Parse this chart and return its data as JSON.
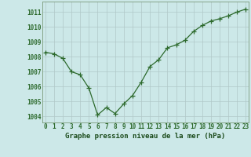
{
  "x": [
    0,
    1,
    2,
    3,
    4,
    5,
    6,
    7,
    8,
    9,
    10,
    11,
    12,
    13,
    14,
    15,
    16,
    17,
    18,
    19,
    20,
    21,
    22,
    23
  ],
  "y": [
    1008.3,
    1008.2,
    1007.9,
    1007.0,
    1006.8,
    1005.9,
    1004.1,
    1004.6,
    1004.2,
    1004.85,
    1005.4,
    1006.3,
    1007.35,
    1007.8,
    1008.6,
    1008.8,
    1009.1,
    1009.7,
    1010.1,
    1010.4,
    1010.55,
    1010.75,
    1011.0,
    1011.2
  ],
  "line_color": "#2d6a2d",
  "marker": "+",
  "marker_size": 4.0,
  "linewidth": 0.9,
  "bg_color": "#cce8e8",
  "grid_color": "#b0c8c8",
  "xlabel": "Graphe pression niveau de la mer (hPa)",
  "xlabel_color": "#1a4a1a",
  "xlabel_fontsize": 6.5,
  "tick_color": "#2d6a2d",
  "tick_fontsize": 5.5,
  "ytick_values": [
    1004,
    1005,
    1006,
    1007,
    1008,
    1009,
    1010,
    1011
  ],
  "ylim": [
    1003.6,
    1011.7
  ],
  "xlim": [
    -0.3,
    23.3
  ],
  "xtick_labels": [
    "0",
    "1",
    "2",
    "3",
    "4",
    "5",
    "6",
    "7",
    "8",
    "9",
    "10",
    "11",
    "12",
    "13",
    "14",
    "15",
    "16",
    "17",
    "18",
    "19",
    "20",
    "21",
    "22",
    "23"
  ]
}
